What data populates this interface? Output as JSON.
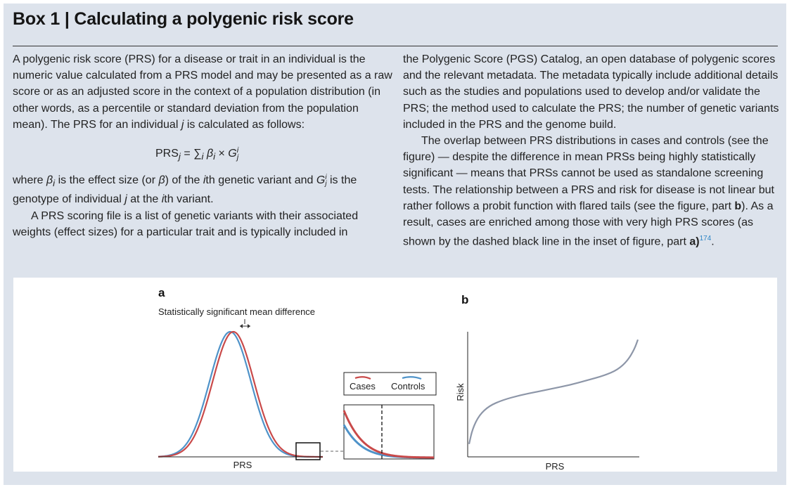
{
  "box": {
    "title": "Box 1 | Calculating a polygenic risk score"
  },
  "text": {
    "left": {
      "p1": "A polygenic risk score (PRS) for a disease or trait in an individual is the numeric value calculated from a PRS model and may be presented as a raw score or as an adjusted score in the context of a population distribution (in other words, as a percentile or standard deviation from the population mean). The PRS for an individual",
      "p1_var": "j",
      "p1_end": "is calculated as follows:",
      "formula_lhs": "PRS",
      "formula_sub": "j",
      "formula_eq": " = ∑",
      "formula_i": "i",
      "formula_beta": "β",
      "formula_beta_sub": "i",
      "formula_times": " × ",
      "formula_G": "G",
      "formula_G_sup": "i",
      "formula_G_sub": "j",
      "p2_a": "where ",
      "p2_beta": "β",
      "p2_beta_sub": "i",
      "p2_b": " is the effect size (or ",
      "p2_beta2": "β",
      "p2_c": ") of the ",
      "p2_i": "i",
      "p2_d": "th genetic variant and ",
      "p2_G": "G",
      "p2_G_sup": "i",
      "p2_G_sub": "j",
      "p2_e": " is the genotype of individual ",
      "p2_j": "j",
      "p2_f": " at the ",
      "p2_i2": "i",
      "p2_g": "th variant.",
      "p3": "A PRS scoring file is a list of genetic variants with their associated weights (effect sizes) for a particular trait and is typically included in"
    },
    "right": {
      "p1": "the Polygenic Score (PGS) Catalog, an open database of polygenic scores and the relevant metadata. The metadata typically include additional details such as the studies and populations used to develop and/or validate the PRS; the method used to calculate the PRS; the number of genetic variants included in the PRS and the genome build.",
      "p2_a": "The overlap between PRS distributions in cases and controls (see the figure) — despite the difference in mean PRSs being highly statistically significant — means that PRSs cannot be used as standalone screening tests. The relationship between a PRS and risk for disease is not linear but rather follows a probit function with flared tails (see the figure, part ",
      "p2_b": "b",
      "p2_c": "). As a result, cases are enriched among those with very high PRS scores (as shown by the dashed black line in the inset of figure, part ",
      "p2_d": "a",
      "p2_e": ")",
      "p2_ref": "174",
      "p2_f": "."
    }
  },
  "figure": {
    "panel_a": {
      "label": "a",
      "annotation": "Statistically significant mean difference",
      "xlabel": "PRS",
      "legend": {
        "cases": "Cases",
        "controls": "Controls"
      }
    },
    "panel_b": {
      "label": "b",
      "xlabel": "PRS",
      "ylabel": "Risk"
    },
    "colors": {
      "cases": "#c94a4a",
      "controls": "#4f93c9",
      "risk_curve": "#8d96a8",
      "box_bg": "#dde3ec"
    }
  },
  "chart_data": [
    {
      "type": "line",
      "panel": "a",
      "title": "",
      "xlabel": "PRS",
      "ylabel": "",
      "annotation": "Statistically significant mean difference",
      "series": [
        {
          "name": "Controls",
          "distribution": "normal",
          "mean": 0.0,
          "sd": 1.0
        },
        {
          "name": "Cases",
          "distribution": "normal",
          "mean": 0.15,
          "sd": 1.0
        }
      ],
      "xlim": [
        -3.5,
        4.5
      ],
      "inset": {
        "xlim": [
          2.5,
          4.5
        ],
        "threshold_x": 3.5,
        "legend": [
          "Cases",
          "Controls"
        ]
      }
    },
    {
      "type": "line",
      "panel": "b",
      "title": "",
      "xlabel": "PRS",
      "ylabel": "Risk",
      "series": [
        {
          "shape": "probit",
          "x": [
            0,
            0.02,
            0.06,
            0.12,
            0.2,
            0.3,
            0.4,
            0.5,
            0.6,
            0.7,
            0.8,
            0.88,
            0.94,
            0.98,
            1.0
          ],
          "y": [
            0.05,
            0.18,
            0.3,
            0.38,
            0.43,
            0.47,
            0.5,
            0.53,
            0.56,
            0.6,
            0.64,
            0.69,
            0.77,
            0.87,
            0.95
          ]
        }
      ]
    }
  ]
}
